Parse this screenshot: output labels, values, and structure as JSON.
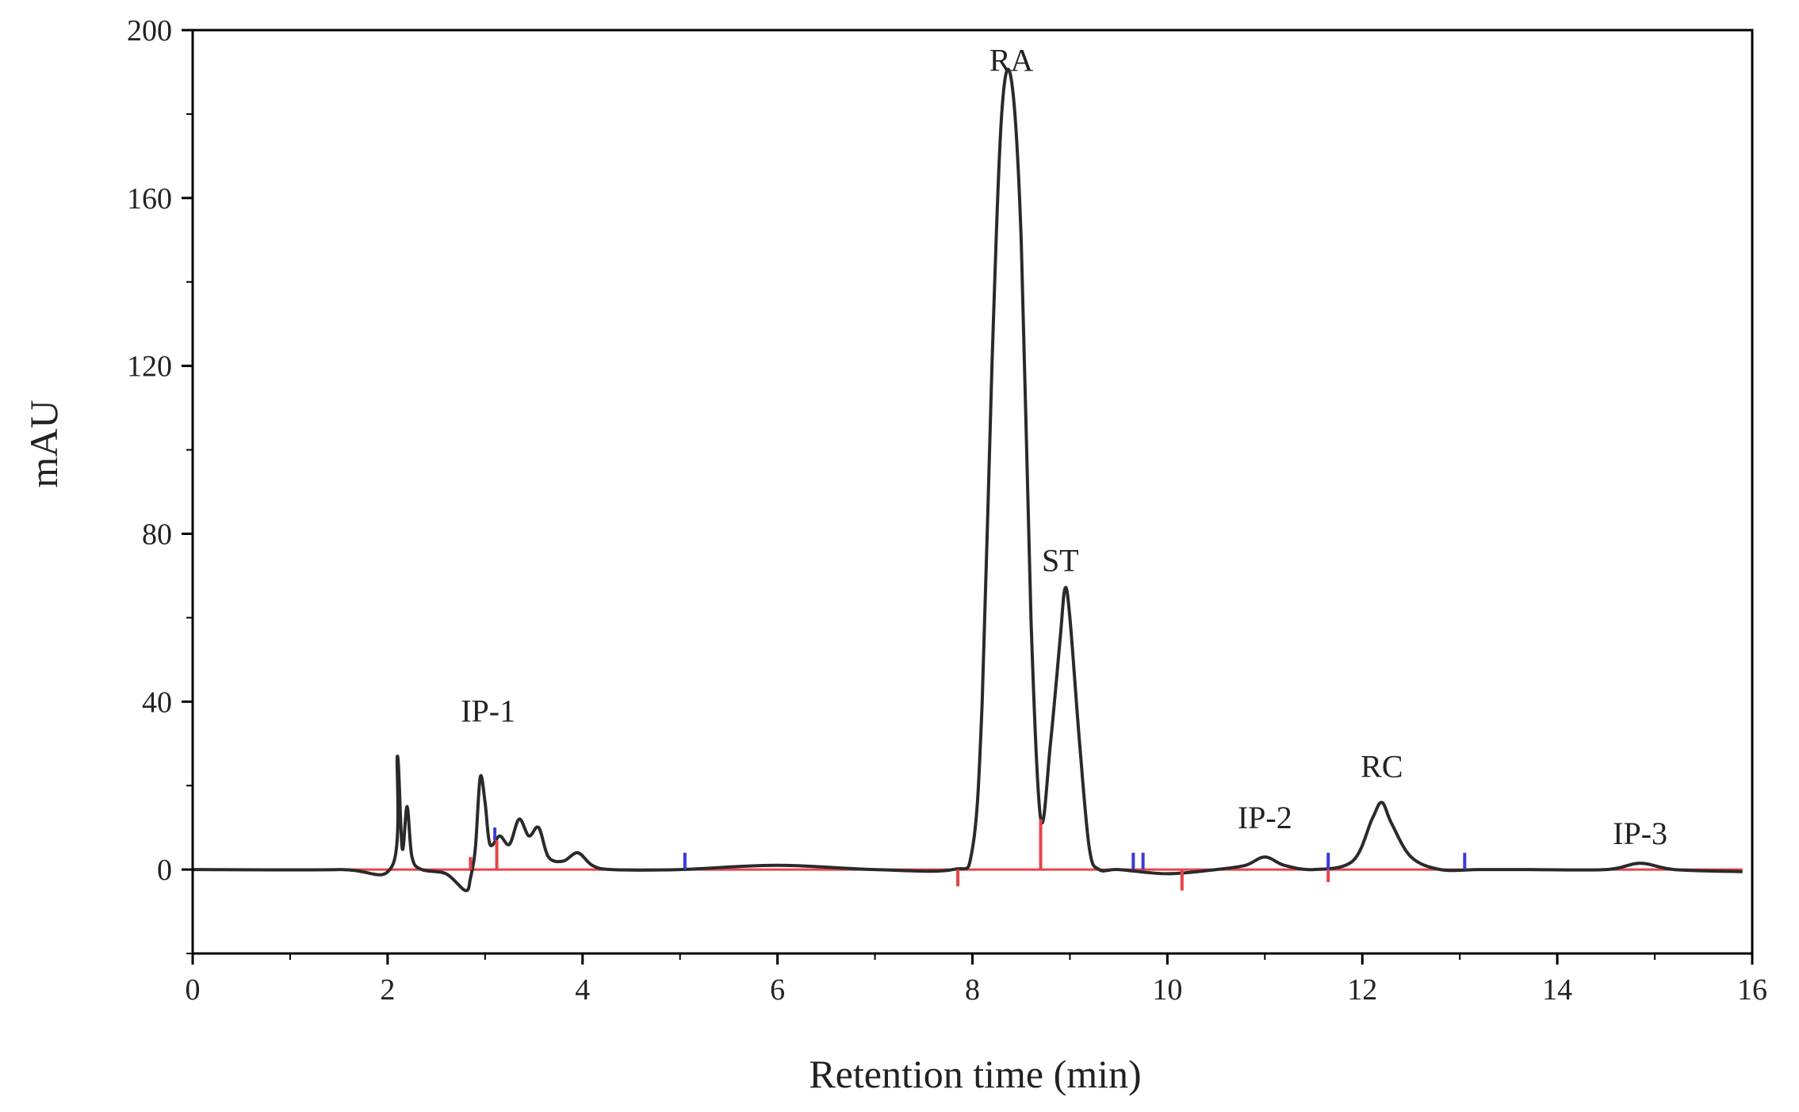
{
  "chart_data": {
    "type": "line",
    "title": "",
    "xlabel": "Retention time (min)",
    "ylabel": "mAU",
    "xlim": [
      0,
      16
    ],
    "ylim": [
      -20,
      200
    ],
    "x_ticks": [
      0,
      2,
      4,
      6,
      8,
      10,
      12,
      14,
      16
    ],
    "y_ticks": [
      0,
      40,
      80,
      120,
      160,
      200
    ],
    "grid": false,
    "legend": "none",
    "colors": {
      "trace": "#2a2a2a",
      "baseline": "#e8434a",
      "marker_blue": "#3b3bd6",
      "axis": "#000000"
    },
    "series": [
      {
        "x": [
          0,
          1.5,
          2.05,
          2.1,
          2.15,
          2.2,
          2.25,
          2.35,
          2.6,
          2.8,
          2.85,
          2.9,
          2.95,
          3.0,
          3.05,
          3.15,
          3.25,
          3.35,
          3.45,
          3.55,
          3.65,
          3.8,
          3.95,
          4.1,
          4.3,
          5.0,
          6.0,
          7.0,
          7.8,
          8.0,
          8.1,
          8.2,
          8.3,
          8.4,
          8.5,
          8.6,
          8.7,
          8.8,
          8.9,
          8.95,
          9.0,
          9.1,
          9.2,
          9.3,
          9.5,
          10.0,
          10.5,
          10.8,
          11.0,
          11.2,
          11.5,
          11.9,
          12.1,
          12.2,
          12.3,
          12.5,
          12.8,
          13.2,
          13.7,
          14.5,
          14.85,
          15.2,
          15.9
        ],
        "y": [
          0,
          0,
          1,
          27,
          5,
          15,
          3,
          0,
          -1,
          -5,
          -2,
          5,
          22,
          16,
          6,
          8,
          6,
          12,
          8,
          10,
          3,
          2,
          4,
          1,
          0,
          0,
          1,
          0,
          0,
          5,
          40,
          120,
          180,
          188,
          150,
          60,
          12,
          30,
          55,
          67,
          60,
          30,
          5,
          0,
          0,
          -1,
          0,
          1,
          3,
          1,
          0,
          2,
          12,
          16,
          11,
          3,
          0,
          0,
          0,
          0,
          1.5,
          0,
          -0.5
        ]
      }
    ],
    "peaks": [
      {
        "label": "IP-1",
        "x": 2.95,
        "y": 22
      },
      {
        "label": "RA",
        "x": 8.4,
        "y": 188
      },
      {
        "label": "ST",
        "x": 8.95,
        "y": 67
      },
      {
        "label": "IP-2",
        "x": 11.0,
        "y": 3
      },
      {
        "label": "RC",
        "x": 12.2,
        "y": 16
      },
      {
        "label": "IP-3",
        "x": 14.85,
        "y": 1.5
      }
    ],
    "baseline_markers": [
      {
        "x": 2.85,
        "y0": 0,
        "y1": 3,
        "color": "red"
      },
      {
        "x": 3.12,
        "y0": 0,
        "y1": 7,
        "color": "red"
      },
      {
        "x": 3.1,
        "y0": 7,
        "y1": 10,
        "color": "blue"
      },
      {
        "x": 5.05,
        "y0": 0,
        "y1": 4,
        "color": "blue"
      },
      {
        "x": 7.85,
        "y0": -4,
        "y1": 0,
        "color": "red"
      },
      {
        "x": 8.7,
        "y0": 0,
        "y1": 12,
        "color": "red"
      },
      {
        "x": 9.65,
        "y0": 0,
        "y1": 4,
        "color": "blue"
      },
      {
        "x": 9.75,
        "y0": 0,
        "y1": 4,
        "color": "blue"
      },
      {
        "x": 10.15,
        "y0": -5,
        "y1": 0,
        "color": "red"
      },
      {
        "x": 11.65,
        "y0": -3,
        "y1": 0,
        "color": "red"
      },
      {
        "x": 11.65,
        "y0": 0,
        "y1": 4,
        "color": "blue"
      },
      {
        "x": 13.05,
        "y0": 0,
        "y1": 4,
        "color": "blue"
      }
    ]
  }
}
